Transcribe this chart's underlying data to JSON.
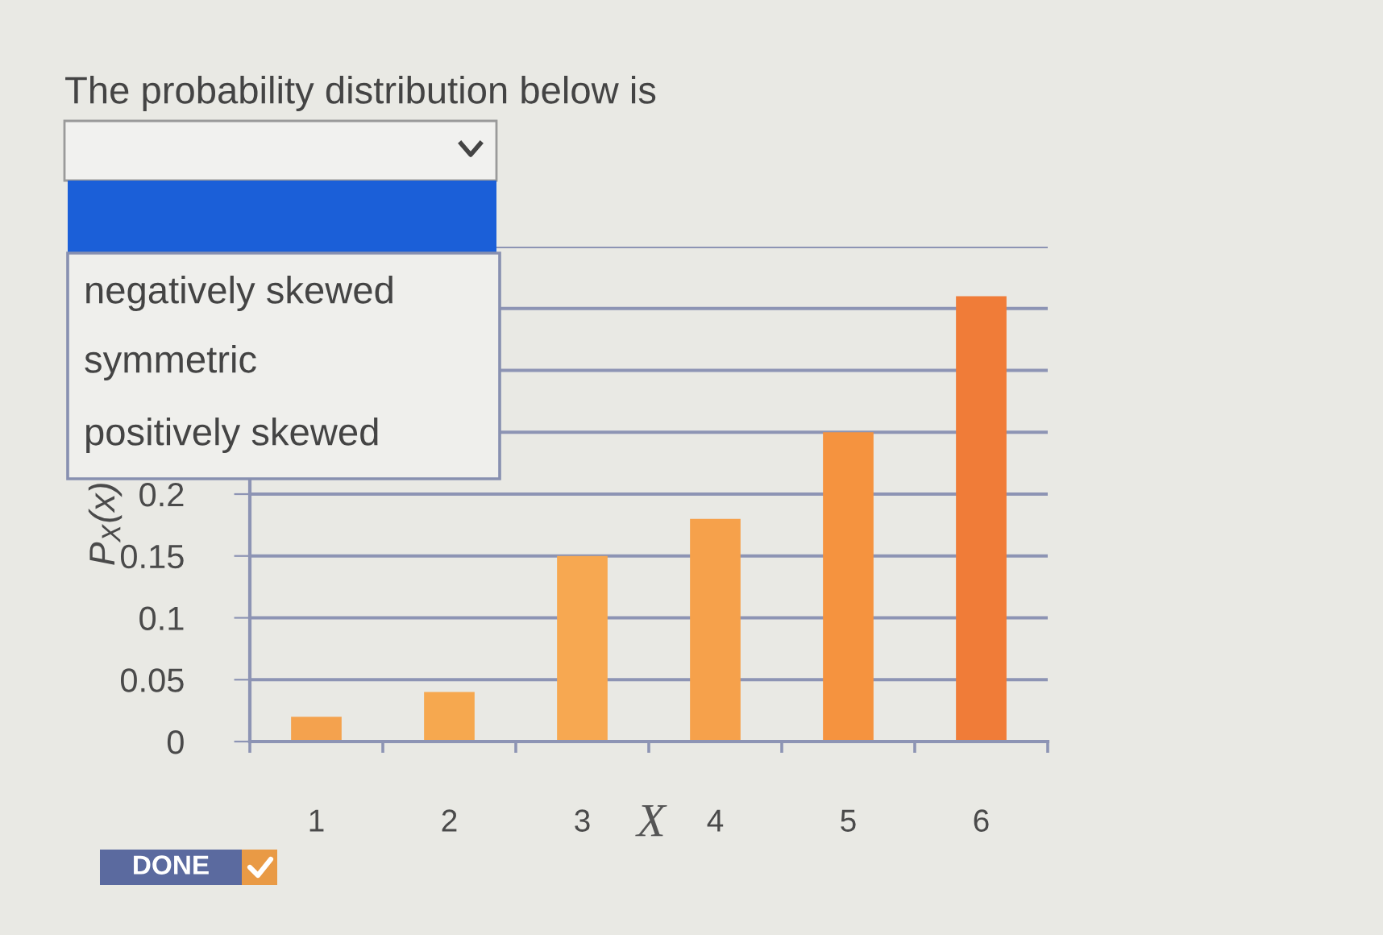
{
  "chart_data": {
    "type": "bar",
    "title": "The probability distribution below is",
    "xlabel": "X",
    "ylabel": "P$_{X}$(x)",
    "categories": [
      "1",
      "2",
      "3",
      "4",
      "5",
      "6"
    ],
    "values": [
      0.02,
      0.04,
      0.15,
      0.18,
      0.25,
      0.36
    ],
    "colors": [
      "#f4a24e",
      "#f6a84f",
      "#f7a851",
      "#f6a14b",
      "#f5933f",
      "#f07c38"
    ],
    "ylim": [
      0,
      0.4
    ],
    "yticks": [
      0,
      0.05,
      0.1,
      0.15,
      0.2,
      {
        "value": 0.25,
        "label": null
      },
      {
        "value": 0.3,
        "label": null
      },
      {
        "value": 0.35,
        "label": null
      },
      {
        "value": 0.4,
        "label": null
      }
    ],
    "grid": "y",
    "annotations": [
      "negatively skewed",
      "symmetric",
      "positively skewed",
      "DONE"
    ]
  }
}
